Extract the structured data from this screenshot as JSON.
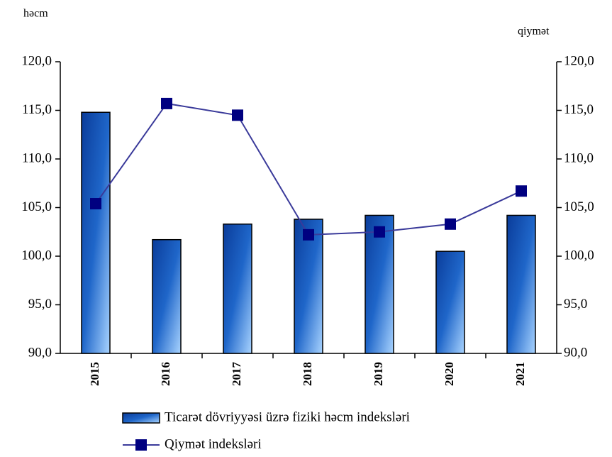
{
  "chart_data": {
    "type": "bar_line",
    "ylabel": "həcm",
    "y2label": "qiymət",
    "categories": [
      "2015",
      "2016",
      "2017",
      "2018",
      "2019",
      "2020",
      "2021"
    ],
    "series": [
      {
        "name": "Ticarət dövriyyəsi üzrə fiziki həcm indeksləri",
        "type": "bar",
        "color": "#1f66c9",
        "values": [
          114.8,
          101.7,
          103.3,
          103.8,
          104.2,
          100.5,
          104.2
        ]
      },
      {
        "name": "Qiymət indeksləri",
        "type": "line",
        "axis": "y2",
        "color": "#000080",
        "line_color": "#3a3a9a",
        "values": [
          105.4,
          115.7,
          114.5,
          102.2,
          102.5,
          103.3,
          106.7
        ]
      }
    ],
    "ylim": [
      90,
      120
    ],
    "yticks": [
      {
        "value": 90,
        "label": "90,0"
      },
      {
        "value": 95,
        "label": "95,0"
      },
      {
        "value": 100,
        "label": "100,0"
      },
      {
        "value": 105,
        "label": "105,0"
      },
      {
        "value": 110,
        "label": "110,0"
      },
      {
        "value": 115,
        "label": "115,0"
      },
      {
        "value": 120,
        "label": "120,0"
      }
    ],
    "y2lim": [
      90,
      120
    ],
    "y2ticks": [
      {
        "value": 90,
        "label": "90,0"
      },
      {
        "value": 95,
        "label": "95,0"
      },
      {
        "value": 100,
        "label": "100,0"
      },
      {
        "value": 105,
        "label": "105,0"
      },
      {
        "value": 110,
        "label": "110,0"
      },
      {
        "value": 115,
        "label": "115,0"
      },
      {
        "value": 120,
        "label": "120,0"
      }
    ]
  }
}
